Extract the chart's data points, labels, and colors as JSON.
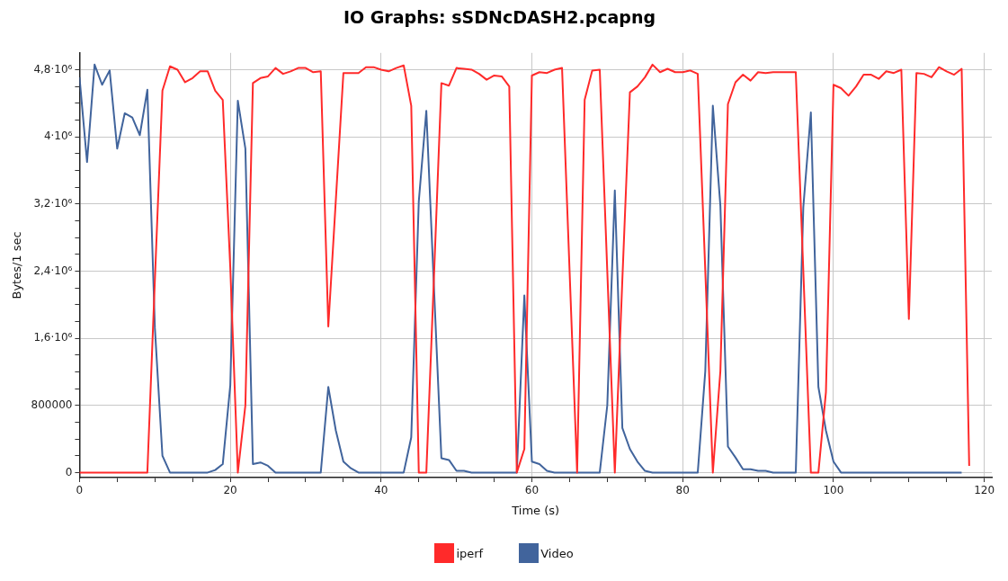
{
  "chart_data": {
    "type": "line",
    "title": "IO Graphs: sSDNcDASH2.pcapng",
    "xlabel": "Time (s)",
    "ylabel": "Bytes/1 sec",
    "xlim": [
      0,
      121
    ],
    "xticks": [
      0,
      {
        "value": 5,
        "label": null
      },
      {
        "value": 10,
        "label": null
      },
      {
        "value": 15,
        "label": null
      },
      20,
      {
        "value": 25,
        "label": null
      },
      {
        "value": 30,
        "label": null
      },
      {
        "value": 35,
        "label": null
      },
      40,
      {
        "value": 45,
        "label": null
      },
      {
        "value": 50,
        "label": null
      },
      {
        "value": 55,
        "label": null
      },
      60,
      {
        "value": 65,
        "label": null
      },
      {
        "value": 70,
        "label": null
      },
      {
        "value": 75,
        "label": null
      },
      80,
      {
        "value": 85,
        "label": null
      },
      {
        "value": 90,
        "label": null
      },
      {
        "value": 95,
        "label": null
      },
      100,
      {
        "value": 105,
        "label": null
      },
      {
        "value": 110,
        "label": null
      },
      {
        "value": 115,
        "label": null
      },
      120
    ],
    "ylim": [
      -60000,
      5000000
    ],
    "yticks": [
      0,
      {
        "value": 200000,
        "label": null
      },
      {
        "value": 400000,
        "label": null
      },
      {
        "value": 600000,
        "label": null
      },
      800000,
      {
        "value": 1000000,
        "label": null
      },
      {
        "value": 1200000,
        "label": null
      },
      {
        "value": 1400000,
        "label": null
      },
      {
        "value": 1600000,
        "label": "1,6·10⁶"
      },
      {
        "value": 1800000,
        "label": null
      },
      {
        "value": 2000000,
        "label": null
      },
      {
        "value": 2200000,
        "label": null
      },
      {
        "value": 2400000,
        "label": "2,4·10⁶"
      },
      {
        "value": 2600000,
        "label": null
      },
      {
        "value": 2800000,
        "label": null
      },
      {
        "value": 3000000,
        "label": null
      },
      {
        "value": 3200000,
        "label": "3,2·10⁶"
      },
      {
        "value": 3400000,
        "label": null
      },
      {
        "value": 3600000,
        "label": null
      },
      {
        "value": 3800000,
        "label": null
      },
      {
        "value": 4000000,
        "label": "4·10⁶"
      },
      {
        "value": 4200000,
        "label": null
      },
      {
        "value": 4400000,
        "label": null
      },
      {
        "value": 4600000,
        "label": null
      },
      {
        "value": 4800000,
        "label": "4,8·10⁶"
      }
    ],
    "grid": true,
    "legend": "bottom",
    "marker": "none",
    "line_style": "solid",
    "series": [
      {
        "name": "iperf",
        "color": "#ff2a2a",
        "x": [
          0,
          9,
          10,
          11,
          12,
          13,
          14,
          15,
          16,
          17,
          18,
          19,
          20,
          21,
          22,
          23,
          24,
          25,
          26,
          27,
          28,
          29,
          30,
          31,
          32,
          33,
          34,
          35,
          36,
          37,
          38,
          39,
          40,
          41,
          42,
          43,
          44,
          45,
          46,
          47,
          48,
          49,
          50,
          51,
          52,
          53,
          54,
          55,
          56,
          57,
          58,
          59,
          60,
          61,
          62,
          63,
          64,
          65,
          66,
          67,
          68,
          69,
          70,
          71,
          72,
          73,
          74,
          75,
          76,
          77,
          78,
          79,
          80,
          81,
          82,
          83,
          84,
          85,
          86,
          87,
          88,
          89,
          90,
          91,
          92,
          93,
          94,
          95,
          96,
          97,
          98,
          99,
          100,
          101,
          102,
          103,
          104,
          105,
          106,
          107,
          108,
          109,
          110,
          111,
          112,
          113,
          114,
          115,
          116,
          117,
          118
        ],
        "values": [
          0,
          0,
          2300000,
          4550000,
          4840000,
          4800000,
          4650000,
          4700000,
          4780000,
          4780000,
          4550000,
          4440000,
          2440000,
          0,
          800000,
          4640000,
          4700000,
          4720000,
          4820000,
          4750000,
          4780000,
          4820000,
          4820000,
          4770000,
          4780000,
          1740000,
          3250000,
          4760000,
          4760000,
          4760000,
          4830000,
          4830000,
          4800000,
          4780000,
          4820000,
          4850000,
          4370000,
          0,
          0,
          2300000,
          4640000,
          4610000,
          4820000,
          4810000,
          4800000,
          4750000,
          4680000,
          4730000,
          4720000,
          4600000,
          0,
          280000,
          4730000,
          4770000,
          4760000,
          4800000,
          4820000,
          2400000,
          0,
          4440000,
          4790000,
          4800000,
          2400000,
          0,
          2300000,
          4530000,
          4600000,
          4710000,
          4860000,
          4770000,
          4810000,
          4770000,
          4770000,
          4790000,
          4750000,
          2400000,
          0,
          1210000,
          4390000,
          4650000,
          4740000,
          4670000,
          4770000,
          4760000,
          4770000,
          4770000,
          4770000,
          4770000,
          2400000,
          0,
          0,
          960000,
          4620000,
          4580000,
          4490000,
          4600000,
          4740000,
          4740000,
          4690000,
          4780000,
          4760000,
          4800000,
          1830000,
          4760000,
          4750000,
          4710000,
          4830000,
          4780000,
          4740000,
          4810000,
          80000
        ]
      },
      {
        "name": "Video",
        "color": "#41649c",
        "x": [
          0,
          1,
          2,
          3,
          4,
          5,
          6,
          7,
          8,
          9,
          10,
          11,
          12,
          17,
          18,
          19,
          20,
          21,
          22,
          23,
          24,
          25,
          26,
          32,
          33,
          34,
          35,
          36,
          37,
          43,
          44,
          45,
          46,
          47,
          48,
          49,
          50,
          51,
          52,
          58,
          59,
          60,
          61,
          62,
          63,
          69,
          70,
          71,
          72,
          73,
          74,
          75,
          76,
          82,
          83,
          84,
          85,
          86,
          87,
          88,
          89,
          90,
          91,
          92,
          95,
          96,
          97,
          98,
          99,
          100,
          101,
          117
        ],
        "values": [
          4710000,
          3700000,
          4860000,
          4620000,
          4790000,
          3860000,
          4280000,
          4230000,
          4020000,
          4560000,
          1720000,
          200000,
          0,
          0,
          30000,
          100000,
          1040000,
          4430000,
          3860000,
          100000,
          120000,
          80000,
          0,
          0,
          1020000,
          500000,
          130000,
          50000,
          0,
          0,
          420000,
          3230000,
          4310000,
          2230000,
          170000,
          150000,
          20000,
          20000,
          0,
          0,
          2110000,
          130000,
          100000,
          20000,
          0,
          0,
          800000,
          3360000,
          530000,
          280000,
          130000,
          20000,
          0,
          0,
          1210000,
          4370000,
          3180000,
          310000,
          180000,
          40000,
          40000,
          20000,
          20000,
          0,
          0,
          3160000,
          4290000,
          1020000,
          500000,
          130000,
          0,
          0
        ]
      }
    ]
  }
}
